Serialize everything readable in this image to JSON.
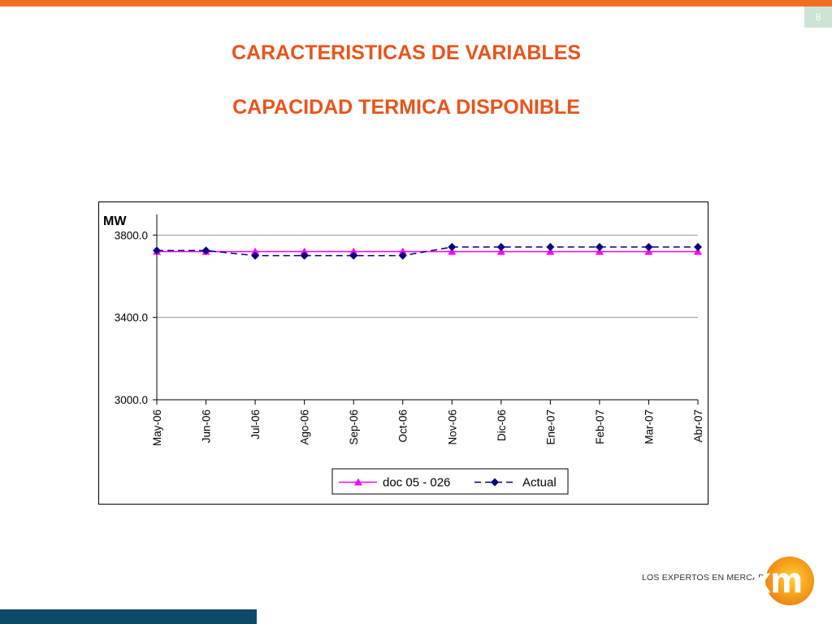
{
  "slide": {
    "page_number": "8",
    "title_line1": "CARACTERISTICAS DE VARIABLES",
    "title_line2": "CAPACIDAD  TERMICA DISPONIBLE"
  },
  "logo": {
    "tagline": "LOS EXPERTOS EN MERCADOS",
    "mark_letters": "xm"
  },
  "colors": {
    "accent_orange": "#f26f21",
    "title_color": "#e8541b",
    "footer_blue": "#0c4a67",
    "series_doc": "#ff00ff",
    "series_actual": "#000080"
  },
  "chart_data": {
    "type": "line",
    "ylabel": "MW",
    "ylim": [
      3000,
      3900
    ],
    "y_ticks": [
      "3000.0",
      "3400.0",
      "3800.0"
    ],
    "y_tick_values": [
      3000,
      3400,
      3800
    ],
    "grid": true,
    "legend_position": "bottom",
    "categories": [
      "May-06",
      "Jun-06",
      "Jul-06",
      "Ago-06",
      "Sep-06",
      "Oct-06",
      "Nov-06",
      "Dic-06",
      "Ene-07",
      "Feb-07",
      "Mar-07",
      "Abr-07"
    ],
    "series": [
      {
        "name": "doc 05 - 026",
        "marker": "triangle",
        "line": "solid",
        "color": "#ff00ff",
        "values": [
          3720,
          3720,
          3720,
          3720,
          3720,
          3720,
          3720,
          3720,
          3720,
          3720,
          3720,
          3720
        ]
      },
      {
        "name": "Actual",
        "marker": "diamond",
        "line": "dashed",
        "color": "#000080",
        "values": [
          3725,
          3725,
          3700,
          3700,
          3700,
          3700,
          3742,
          3742,
          3742,
          3742,
          3742,
          3742
        ]
      }
    ]
  }
}
